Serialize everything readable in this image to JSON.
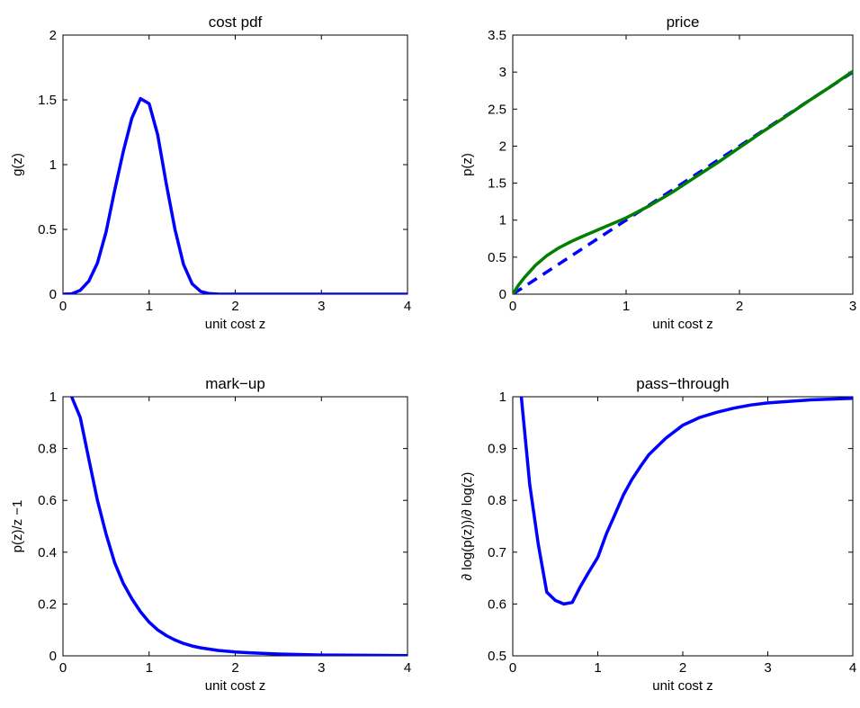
{
  "figure": {
    "colors": {
      "blue": "#0000ff",
      "green": "#007f00",
      "axes": "#000000",
      "background": "#ffffff"
    }
  },
  "chart_data": [
    {
      "type": "line",
      "title": "cost pdf",
      "xlabel": "unit cost z",
      "ylabel": "g(z)",
      "xlim": [
        0,
        4
      ],
      "ylim": [
        0,
        2
      ],
      "xticks": [
        "0",
        "1",
        "2",
        "3",
        "4"
      ],
      "yticks": [
        "0",
        "0.5",
        "1",
        "1.5",
        "2"
      ],
      "grid": false,
      "series": [
        {
          "color": "#0000ff",
          "style": "solid",
          "x": [
            0,
            0.1,
            0.2,
            0.3,
            0.4,
            0.5,
            0.6,
            0.7,
            0.8,
            0.9,
            1.0,
            1.1,
            1.2,
            1.3,
            1.4,
            1.5,
            1.6,
            1.7,
            1.8,
            2.0,
            2.5,
            3.0,
            3.5,
            4.0
          ],
          "y": [
            0,
            0.003,
            0.03,
            0.1,
            0.24,
            0.48,
            0.8,
            1.1,
            1.36,
            1.51,
            1.47,
            1.23,
            0.85,
            0.5,
            0.23,
            0.08,
            0.02,
            0.004,
            0.001,
            0,
            0,
            0,
            0,
            0
          ]
        }
      ]
    },
    {
      "type": "line",
      "title": "price",
      "xlabel": "unit cost z",
      "ylabel": "p(z)",
      "xlim": [
        0,
        3
      ],
      "ylim": [
        0,
        3.5
      ],
      "xticks": [
        "0",
        "1",
        "2",
        "3"
      ],
      "yticks": [
        "0",
        "0.5",
        "1",
        "1.5",
        "2",
        "2.5",
        "3",
        "3.5"
      ],
      "grid": false,
      "series": [
        {
          "color": "#0000ff",
          "style": "dashed",
          "x": [
            0,
            3
          ],
          "y": [
            0,
            3
          ]
        },
        {
          "color": "#007f00",
          "style": "solid",
          "x": [
            0,
            0.05,
            0.1,
            0.2,
            0.3,
            0.4,
            0.5,
            0.6,
            0.8,
            1.0,
            1.2,
            1.4,
            1.6,
            1.8,
            2.0,
            2.2,
            2.4,
            2.6,
            2.8,
            3.0
          ],
          "y": [
            0,
            0.12,
            0.22,
            0.39,
            0.52,
            0.62,
            0.7,
            0.77,
            0.9,
            1.03,
            1.19,
            1.37,
            1.57,
            1.77,
            1.98,
            2.19,
            2.39,
            2.6,
            2.8,
            3.01
          ]
        }
      ]
    },
    {
      "type": "line",
      "title": "mark−up",
      "xlabel": "unit cost z",
      "ylabel": "p(z)/z −1",
      "xlim": [
        0,
        4
      ],
      "ylim": [
        0,
        1
      ],
      "xticks": [
        "0",
        "1",
        "2",
        "3",
        "4"
      ],
      "yticks": [
        "0",
        "0.2",
        "0.4",
        "0.6",
        "0.8",
        "1"
      ],
      "grid": false,
      "series": [
        {
          "color": "#0000ff",
          "style": "solid",
          "x": [
            0.1,
            0.2,
            0.3,
            0.4,
            0.5,
            0.6,
            0.7,
            0.8,
            0.9,
            1.0,
            1.1,
            1.2,
            1.3,
            1.4,
            1.5,
            1.6,
            1.8,
            2.0,
            2.2,
            2.5,
            3.0,
            3.5,
            4.0
          ],
          "y": [
            1.0,
            0.92,
            0.76,
            0.6,
            0.47,
            0.36,
            0.28,
            0.22,
            0.17,
            0.13,
            0.1,
            0.078,
            0.061,
            0.048,
            0.038,
            0.031,
            0.021,
            0.015,
            0.011,
            0.007,
            0.003,
            0.002,
            0.001
          ]
        }
      ]
    },
    {
      "type": "line",
      "title": "pass−through",
      "xlabel": "unit cost z",
      "ylabel": "∂ log(p(z))/∂ log(z)",
      "xlim": [
        0,
        4
      ],
      "ylim": [
        0.5,
        1
      ],
      "xticks": [
        "0",
        "1",
        "2",
        "3",
        "4"
      ],
      "yticks": [
        "0.5",
        "0.6",
        "0.7",
        "0.8",
        "0.9",
        "1"
      ],
      "grid": false,
      "series": [
        {
          "color": "#0000ff",
          "style": "solid",
          "x": [
            0.1,
            0.2,
            0.3,
            0.4,
            0.5,
            0.6,
            0.7,
            0.8,
            0.9,
            1.0,
            1.1,
            1.2,
            1.3,
            1.4,
            1.5,
            1.6,
            1.8,
            2.0,
            2.2,
            2.4,
            2.6,
            2.8,
            3.0,
            3.5,
            4.0
          ],
          "y": [
            1.0,
            0.83,
            0.715,
            0.623,
            0.607,
            0.6,
            0.603,
            0.635,
            0.663,
            0.69,
            0.735,
            0.772,
            0.81,
            0.84,
            0.865,
            0.888,
            0.92,
            0.945,
            0.96,
            0.97,
            0.978,
            0.984,
            0.988,
            0.994,
            0.997
          ]
        }
      ]
    }
  ]
}
